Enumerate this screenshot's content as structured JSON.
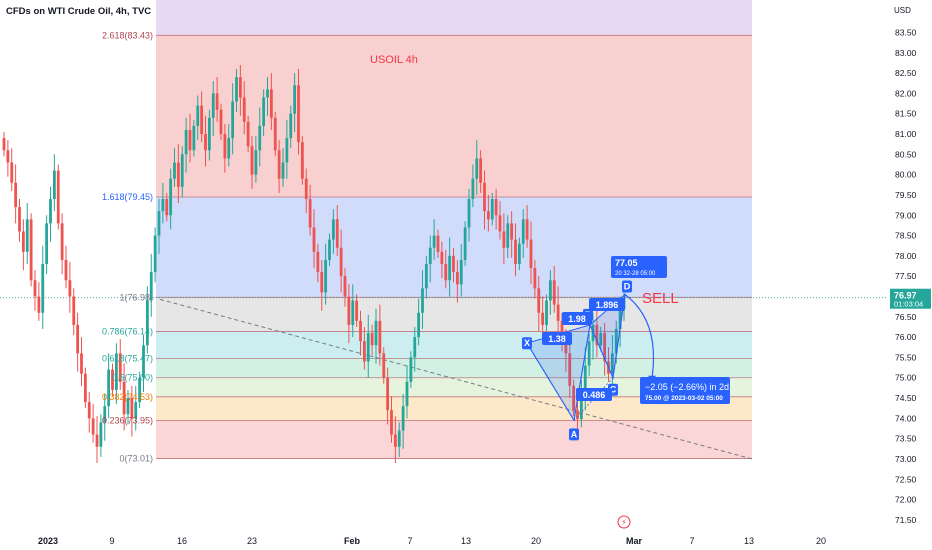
{
  "header": {
    "symbol": "CFDs on WTI Crude Oil, 4h, TVC",
    "currency": "USD"
  },
  "chart_data": {
    "type": "candlestick",
    "title": "USOIL 4h",
    "ylim": [
      71.3,
      84.3
    ],
    "y_ticks": [
      71.5,
      72.0,
      72.5,
      73.0,
      73.5,
      74.0,
      74.5,
      75.0,
      75.5,
      76.0,
      76.5,
      77.0,
      77.5,
      78.0,
      78.5,
      79.0,
      79.5,
      80.0,
      80.5,
      81.0,
      81.5,
      82.0,
      82.5,
      83.0,
      83.5,
      84.0
    ],
    "x_ticks": [
      "2023",
      "9",
      "16",
      "23",
      "Feb",
      "7",
      "13",
      "20",
      "Mar",
      "7",
      "13",
      "20"
    ],
    "current_price": "76.97",
    "countdown": "01:03:04",
    "fib_levels": [
      {
        "label": "2.618(83.43)",
        "value": 83.43
      },
      {
        "label": "1.618(79.45)",
        "value": 79.45
      },
      {
        "label": "1(76.98)",
        "value": 76.98
      },
      {
        "label": "0.786(76.14)",
        "value": 76.14
      },
      {
        "label": "0.618(75.47)",
        "value": 75.47
      },
      {
        "label": "0.5(75.00)",
        "value": 75.0
      },
      {
        "label": "0.382(74.53)",
        "value": 74.53
      },
      {
        "label": "0.236(73.95)",
        "value": 73.95
      },
      {
        "label": "0(73.01)",
        "value": 73.01
      }
    ],
    "fib_colors": {
      "top": "#f9d0d0",
      "extension": "#d1dcfb",
      "level1": "#e6e6e6",
      "level0786": "#cdeef0",
      "level0618": "#d2f0e4",
      "level05": "#e6f4de",
      "level0382": "#fde9c9",
      "level0236": "#fad6d6"
    },
    "colors": {
      "up": "#26a69a",
      "down": "#ef5350",
      "pattern": "#2962ff",
      "price_tag": "#26a69a",
      "sell": "#f23645"
    },
    "pattern_points": [
      {
        "label": "X",
        "value": 75.85
      },
      {
        "label": "A",
        "value": 73.95
      },
      {
        "label": "B",
        "value": 76.3
      },
      {
        "label": "C",
        "value": 75.0
      },
      {
        "label": "D",
        "value": 77.05
      }
    ],
    "pattern_ratios": [
      "1.38",
      "1.98",
      "0.486",
      "1.896"
    ],
    "projection": {
      "target_label": "77.05",
      "target_sub": "20 32-28 05:00",
      "result_label": "−2.05 (−2.66%) in 2d",
      "result_sub": "75.00 @ 2023-03-02 05:00",
      "target_value": 75.0
    },
    "annotation": "SELL",
    "trendline": {
      "from": 76.93,
      "to": 73.0
    },
    "candles_close": [
      80.6,
      80.3,
      79.8,
      79.2,
      78.6,
      78.1,
      78.9,
      77.4,
      77.0,
      76.6,
      77.8,
      78.8,
      79.4,
      80.1,
      78.8,
      77.9,
      77.4,
      77.0,
      76.3,
      75.6,
      75.1,
      74.4,
      74.0,
      73.6,
      73.3,
      73.9,
      74.3,
      75.2,
      74.7,
      75.6,
      74.9,
      74.1,
      74.5,
      74.0,
      74.4,
      75.0,
      75.8,
      76.9,
      77.6,
      78.5,
      79.1,
      79.4,
      79.0,
      79.9,
      80.3,
      79.7,
      80.5,
      81.1,
      80.6,
      81.2,
      81.7,
      81.0,
      80.6,
      81.4,
      82.0,
      81.6,
      81.0,
      80.4,
      80.9,
      81.8,
      82.4,
      81.9,
      81.3,
      80.7,
      80.0,
      80.6,
      81.2,
      81.9,
      82.1,
      81.4,
      80.6,
      79.9,
      80.3,
      80.9,
      81.5,
      82.2,
      80.8,
      79.9,
      79.4,
      78.7,
      78.1,
      77.6,
      77.1,
      77.9,
      78.4,
      78.9,
      78.2,
      77.5,
      77.0,
      76.3,
      76.9,
      76.4,
      75.9,
      75.4,
      76.1,
      75.8,
      76.4,
      75.6,
      75.0,
      74.2,
      73.6,
      73.3,
      73.7,
      74.3,
      74.9,
      75.5,
      76.0,
      76.6,
      77.2,
      77.8,
      78.2,
      78.5,
      78.1,
      77.8,
      77.4,
      78.0,
      77.6,
      77.3,
      77.9,
      78.7,
      79.4,
      79.9,
      80.4,
      79.8,
      79.1,
      78.9,
      79.4,
      79.0,
      78.6,
      78.2,
      78.8,
      78.4,
      77.8,
      78.3,
      78.9,
      78.4,
      77.7,
      77.2,
      76.6,
      76.3,
      76.9,
      77.4,
      76.8,
      76.4,
      75.9,
      75.6,
      74.8,
      74.2,
      73.98,
      74.6,
      75.3,
      75.9,
      76.3,
      75.8,
      76.1,
      75.4,
      75.1,
      75.6,
      76.2,
      76.7,
      76.97
    ]
  }
}
